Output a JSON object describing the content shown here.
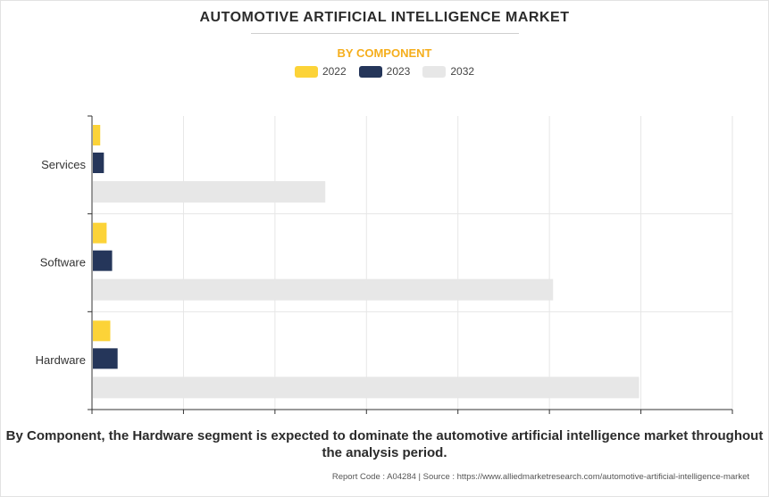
{
  "title": "AUTOMOTIVE ARTIFICIAL INTELLIGENCE MARKET",
  "subtitle": "BY COMPONENT",
  "footnote": "By Component, the Hardware segment is expected to dominate the automotive artificial intelligence market throughout the analysis period.",
  "source": "Report Code : A04284  |  Source : https://www.alliedmarketresearch.com/automotive-artificial-intelligence-market",
  "chart_data": {
    "type": "bar",
    "orientation": "horizontal",
    "categories": [
      "Services",
      "Software",
      "Hardware"
    ],
    "series": [
      {
        "name": "2022",
        "color": "#fcd338",
        "values": [
          0.9,
          1.6,
          2.0
        ]
      },
      {
        "name": "2023",
        "color": "#25365a",
        "values": [
          1.3,
          2.2,
          2.8
        ]
      },
      {
        "name": "2032",
        "color": "#e7e7e7",
        "values": [
          25.5,
          50.4,
          59.8
        ]
      }
    ],
    "xlim": [
      0,
      70
    ],
    "x_ticks": [
      0,
      10,
      20,
      30,
      40,
      50,
      60,
      70
    ],
    "x_tick_labels_shown": false,
    "grid": true,
    "legend_position": "top"
  }
}
